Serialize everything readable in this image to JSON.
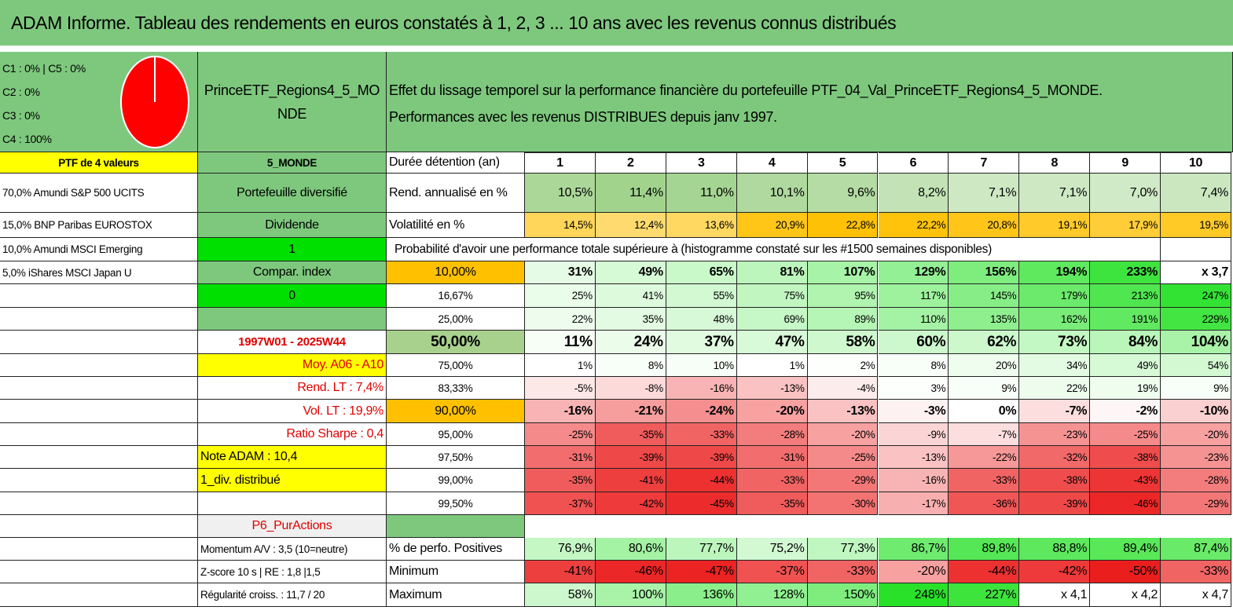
{
  "title": "ADAM Informe. Tableau des rendements en euros constatés à 1, 2, 3 ... 10 ans avec les revenus connus distribués",
  "pie_legend": [
    "C1 : 0% | C5 : 0%",
    "C2 : 0%",
    "C3 : 0%",
    "C4 : 100%"
  ],
  "fund_name": "PrinceETF_Regions4_5_MONDE",
  "description": [
    "Effet du lissage temporel sur la performance financière du portefeuille PTF_04_Val_PrinceETF_Regions4_5_MONDE.",
    "Performances avec les revenus DISTRIBUES depuis janv 1997."
  ],
  "rows": [
    {
      "a": "PTF de 4 valeurs",
      "b": "5_MONDE",
      "c": "Durée détention (an)",
      "values": [
        "1",
        "2",
        "3",
        "4",
        "5",
        "6",
        "7",
        "8",
        "9",
        "10"
      ]
    },
    {
      "a": "70,0% Amundi S&P 500 UCITS",
      "b": "Portefeuille diversifié",
      "c": "Rend. annualisé en %",
      "values": [
        "10,5%",
        "11,4%",
        "11,0%",
        "10,1%",
        "9,6%",
        "8,2%",
        "7,1%",
        "7,1%",
        "7,0%",
        "7,4%"
      ]
    },
    {
      "a": "15,0% BNP Paribas EUROSTOX",
      "b": "Dividende",
      "c": "Volatilité en %",
      "values": [
        "14,5%",
        "12,4%",
        "13,6%",
        "20,9%",
        "22,8%",
        "22,2%",
        "20,8%",
        "19,1%",
        "17,9%",
        "19,5%"
      ]
    },
    {
      "a": "10,0% Amundi MSCI Emerging",
      "b": "1",
      "c": "Probabilité d'avoir une performance totale supérieure à (histogramme constaté sur les #1500 semaines disponibles)"
    },
    {
      "a": "5,0% iShares MSCI Japan U",
      "b": "Compar. index",
      "c": "10,00%",
      "values": [
        "31%",
        "49%",
        "65%",
        "81%",
        "107%",
        "129%",
        "156%",
        "194%",
        "233%",
        "x 3,7"
      ]
    },
    {
      "b": "0",
      "c": "16,67%",
      "values": [
        "25%",
        "41%",
        "55%",
        "75%",
        "95%",
        "117%",
        "145%",
        "179%",
        "213%",
        "247%"
      ]
    },
    {
      "c": "25,00%",
      "values": [
        "22%",
        "35%",
        "48%",
        "69%",
        "89%",
        "110%",
        "135%",
        "162%",
        "191%",
        "229%"
      ]
    },
    {
      "b": "1997W01 - 2025W44",
      "c": "50,00%",
      "values": [
        "11%",
        "24%",
        "37%",
        "47%",
        "58%",
        "60%",
        "62%",
        "73%",
        "84%",
        "104%"
      ]
    },
    {
      "b": "Moy. A06 - A10",
      "c": "75,00%",
      "values": [
        "1%",
        "8%",
        "10%",
        "1%",
        "2%",
        "8%",
        "20%",
        "34%",
        "49%",
        "54%"
      ]
    },
    {
      "b": "Rend. LT : 7,4%",
      "c": "83,33%",
      "values": [
        "-5%",
        "-8%",
        "-16%",
        "-13%",
        "-4%",
        "3%",
        "9%",
        "22%",
        "19%",
        "9%"
      ]
    },
    {
      "b": "Vol. LT : 19,9%",
      "c": "90,00%",
      "values": [
        "-16%",
        "-21%",
        "-24%",
        "-20%",
        "-13%",
        "-3%",
        "0%",
        "-7%",
        "-2%",
        "-10%"
      ]
    },
    {
      "b": "Ratio Sharpe : 0,4",
      "c": "95,00%",
      "values": [
        "-25%",
        "-35%",
        "-33%",
        "-28%",
        "-20%",
        "-9%",
        "-7%",
        "-23%",
        "-25%",
        "-20%"
      ]
    },
    {
      "b": "Note ADAM : 10,4",
      "c": "97,50%",
      "values": [
        "-31%",
        "-39%",
        "-39%",
        "-31%",
        "-25%",
        "-13%",
        "-22%",
        "-32%",
        "-38%",
        "-23%"
      ]
    },
    {
      "b": "1_div. distribué",
      "c": "99,00%",
      "values": [
        "-35%",
        "-41%",
        "-44%",
        "-33%",
        "-29%",
        "-16%",
        "-33%",
        "-38%",
        "-43%",
        "-28%"
      ]
    },
    {
      "c": "99,50%",
      "values": [
        "-37%",
        "-42%",
        "-45%",
        "-35%",
        "-30%",
        "-17%",
        "-36%",
        "-39%",
        "-46%",
        "-29%"
      ]
    },
    {
      "b": "P6_PurActions"
    },
    {
      "b": "Momentum A/V : 3,5 (10=neutre)",
      "c": "% de perfo. Positives",
      "values": [
        "76,9%",
        "80,6%",
        "77,7%",
        "75,2%",
        "77,3%",
        "86,7%",
        "89,8%",
        "88,8%",
        "89,4%",
        "87,4%"
      ]
    },
    {
      "b": "Z-score 10 s | RE : 1,8 |1,5",
      "c": "Minimum",
      "values": [
        "-41%",
        "-46%",
        "-47%",
        "-37%",
        "-33%",
        "-20%",
        "-44%",
        "-42%",
        "-50%",
        "-33%"
      ]
    },
    {
      "b": "Régularité croiss. : 11,7 / 20",
      "c": "Maximum",
      "values": [
        "58%",
        "100%",
        "136%",
        "128%",
        "150%",
        "248%",
        "227%",
        "x 4,1",
        "x 4,2",
        "x 4,7"
      ]
    }
  ]
}
